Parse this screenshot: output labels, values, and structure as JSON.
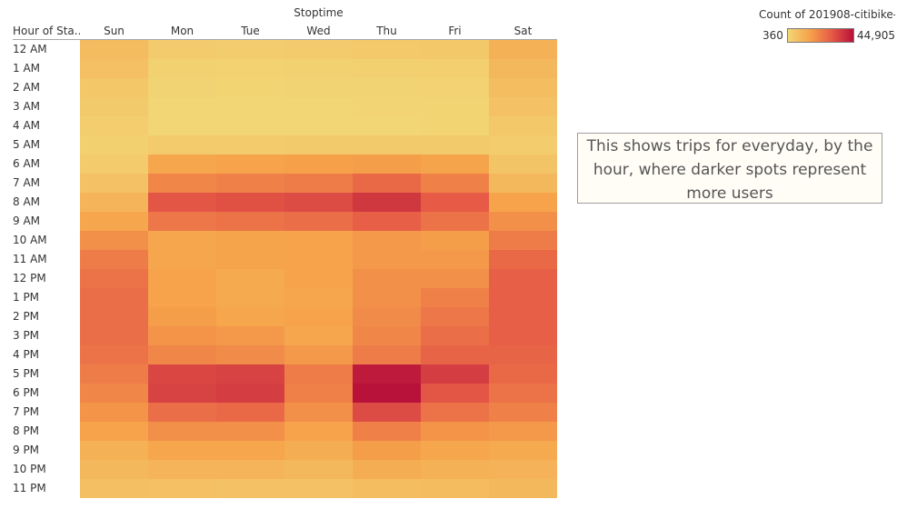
{
  "chart_data": {
    "type": "heatmap",
    "title": "",
    "x_title": "Stoptime",
    "y_title": "Hour of Sta..",
    "x_categories": [
      "Sun",
      "Mon",
      "Tue",
      "Wed",
      "Thu",
      "Fri",
      "Sat"
    ],
    "y_categories": [
      "12 AM",
      "1 AM",
      "2 AM",
      "3 AM",
      "4 AM",
      "5 AM",
      "6 AM",
      "7 AM",
      "8 AM",
      "9 AM",
      "10 AM",
      "11 AM",
      "12 PM",
      "1 PM",
      "2 PM",
      "3 PM",
      "4 PM",
      "5 PM",
      "6 PM",
      "7 PM",
      "8 PM",
      "9 PM",
      "10 PM",
      "11 PM"
    ],
    "values": [
      [
        8000,
        3500,
        3200,
        3600,
        4200,
        4500,
        11000
      ],
      [
        6500,
        1800,
        1600,
        1800,
        2000,
        2400,
        9000
      ],
      [
        5000,
        1100,
        900,
        1100,
        1200,
        1400,
        7500
      ],
      [
        3800,
        700,
        600,
        700,
        800,
        900,
        6000
      ],
      [
        2800,
        700,
        600,
        700,
        700,
        900,
        4500
      ],
      [
        2200,
        3500,
        3600,
        3800,
        3900,
        3700,
        3000
      ],
      [
        3500,
        14000,
        15000,
        15500,
        16000,
        14500,
        5500
      ],
      [
        6000,
        21000,
        22000,
        23000,
        27000,
        22000,
        9000
      ],
      [
        10000,
        31000,
        32000,
        33000,
        37000,
        30000,
        15000
      ],
      [
        14000,
        24000,
        25000,
        26000,
        29000,
        25000,
        19000
      ],
      [
        19000,
        14000,
        14500,
        15000,
        17000,
        16000,
        23000
      ],
      [
        23000,
        14000,
        14500,
        15000,
        17000,
        17000,
        27000
      ],
      [
        25000,
        15000,
        13000,
        15000,
        19000,
        19000,
        29000
      ],
      [
        26000,
        15000,
        13000,
        14000,
        19000,
        22000,
        29000
      ],
      [
        26000,
        16000,
        14000,
        15000,
        20000,
        24000,
        29000
      ],
      [
        26000,
        18000,
        17000,
        14000,
        21000,
        26000,
        29000
      ],
      [
        25000,
        21000,
        20000,
        17000,
        23000,
        28000,
        28000
      ],
      [
        23000,
        34000,
        35000,
        23000,
        43000,
        36000,
        27000
      ],
      [
        21000,
        35000,
        36000,
        22000,
        44905,
        31000,
        25000
      ],
      [
        18000,
        26000,
        27000,
        19000,
        33000,
        25000,
        22000
      ],
      [
        15000,
        19000,
        19000,
        15000,
        22000,
        18000,
        17000
      ],
      [
        11000,
        14000,
        14000,
        12000,
        16000,
        14000,
        13000
      ],
      [
        9000,
        10000,
        10000,
        9000,
        12000,
        11000,
        10500
      ],
      [
        7000,
        6500,
        6000,
        6000,
        7500,
        8000,
        9000
      ]
    ],
    "color_scale": {
      "min": 360,
      "max": 44905,
      "stops": [
        "#f2d675",
        "#f6a24a",
        "#e65a46",
        "#b8123a"
      ]
    },
    "legend": {
      "title": "Count of 201908-citibike-...",
      "min_label": "360",
      "max_label": "44,905",
      "position": "top-right"
    },
    "annotation": "This shows trips for everyday, by the hour, where darker spots represent more users"
  }
}
